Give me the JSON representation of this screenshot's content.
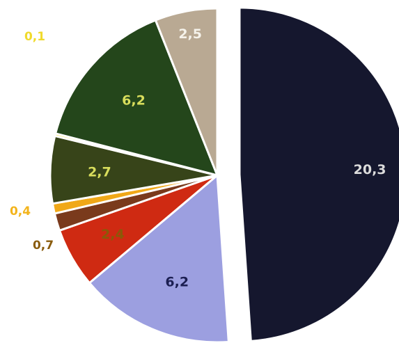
{
  "chart_data": {
    "type": "pie",
    "slices": [
      {
        "key": "s_navy",
        "label": "20,3",
        "value": 20.3,
        "color": "#15172e",
        "label_color": "#dcdcdc",
        "exploded": true
      },
      {
        "key": "s_lavender",
        "label": "6,2",
        "value": 6.2,
        "color": "#9c9fe0",
        "label_color": "#1c1f52"
      },
      {
        "key": "s_red",
        "label": "2,4",
        "value": 2.4,
        "color": "#cf2a12",
        "label_color": "#8a5a08"
      },
      {
        "key": "s_brown",
        "label": "0,7",
        "value": 0.7,
        "color": "#7a3a1c",
        "label_color": "#8a5c0e",
        "outside": true
      },
      {
        "key": "s_orange",
        "label": "0,4",
        "value": 0.4,
        "color": "#f0a818",
        "label_color": "#f3b41c",
        "outside": true
      },
      {
        "key": "s_olive",
        "label": "2,7",
        "value": 2.7,
        "color": "#374419",
        "label_color": "#d8dd5c"
      },
      {
        "key": "s_yellow",
        "label": "0,1",
        "value": 0.1,
        "color": "#f7e23a",
        "label_color": "#f0da2c",
        "outside": true
      },
      {
        "key": "s_darkgreen",
        "label": "6,2",
        "value": 6.2,
        "color": "#24461b",
        "label_color": "#d8dd5c"
      },
      {
        "key": "s_tan",
        "label": "2,5",
        "value": 2.5,
        "color": "#b9a993",
        "label_color": "#f5f2ea"
      }
    ]
  }
}
